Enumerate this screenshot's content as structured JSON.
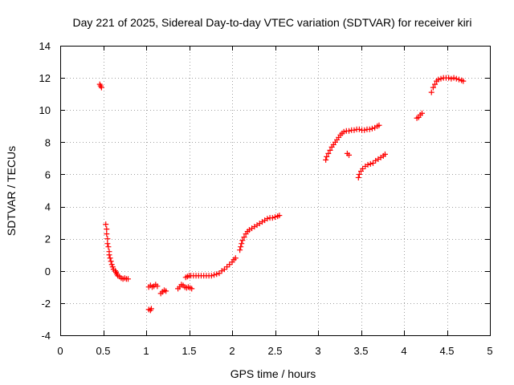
{
  "chart_data": {
    "type": "scatter",
    "title": "Day 221 of 2025, Sidereal Day-to-day VTEC variation (SDTVAR) for receiver kiri",
    "xlabel": "GPS time / hours",
    "ylabel": "SDTVAR / TECUs",
    "xlim": [
      0,
      5
    ],
    "ylim": [
      -4,
      14
    ],
    "xticks": [
      0,
      0.5,
      1,
      1.5,
      2,
      2.5,
      3,
      3.5,
      4,
      4.5,
      5
    ],
    "xtick_labels": [
      "0",
      "0.5",
      "1",
      "1.5",
      "2",
      "2.5",
      "3",
      "3.5",
      "4",
      "4.5",
      "5"
    ],
    "yticks": [
      -4,
      -2,
      0,
      2,
      4,
      6,
      8,
      10,
      12,
      14
    ],
    "ytick_labels": [
      "-4",
      "-2",
      "0",
      "2",
      "4",
      "6",
      "8",
      "10",
      "12",
      "14"
    ],
    "grid": true,
    "marker": "+",
    "marker_color": "#ff0000",
    "series": [
      {
        "name": "SDTVAR",
        "points": [
          [
            0.46,
            11.6
          ],
          [
            0.47,
            11.5
          ],
          [
            0.48,
            11.4
          ],
          [
            0.53,
            2.9
          ],
          [
            0.54,
            2.6
          ],
          [
            0.54,
            2.3
          ],
          [
            0.55,
            2.0
          ],
          [
            0.55,
            1.7
          ],
          [
            0.56,
            1.5
          ],
          [
            0.57,
            1.2
          ],
          [
            0.57,
            1.0
          ],
          [
            0.58,
            0.8
          ],
          [
            0.59,
            0.6
          ],
          [
            0.6,
            0.4
          ],
          [
            0.61,
            0.25
          ],
          [
            0.62,
            0.1
          ],
          [
            0.64,
            0.0
          ],
          [
            0.65,
            -0.1
          ],
          [
            0.66,
            -0.2
          ],
          [
            0.67,
            -0.3
          ],
          [
            0.69,
            -0.35
          ],
          [
            0.71,
            -0.45
          ],
          [
            0.73,
            -0.5
          ],
          [
            0.75,
            -0.45
          ],
          [
            0.77,
            -0.5
          ],
          [
            0.79,
            -0.5
          ],
          [
            1.03,
            -2.4
          ],
          [
            1.05,
            -2.45
          ],
          [
            1.06,
            -2.35
          ],
          [
            1.03,
            -1.0
          ],
          [
            1.05,
            -0.9
          ],
          [
            1.07,
            -1.0
          ],
          [
            1.09,
            -0.95
          ],
          [
            1.11,
            -0.85
          ],
          [
            1.13,
            -0.95
          ],
          [
            1.17,
            -1.4
          ],
          [
            1.19,
            -1.3
          ],
          [
            1.21,
            -1.2
          ],
          [
            1.23,
            -1.25
          ],
          [
            1.37,
            -1.1
          ],
          [
            1.39,
            -1.0
          ],
          [
            1.41,
            -0.85
          ],
          [
            1.43,
            -0.9
          ],
          [
            1.45,
            -1.0
          ],
          [
            1.47,
            -1.05
          ],
          [
            1.49,
            -1.0
          ],
          [
            1.51,
            -1.05
          ],
          [
            1.53,
            -1.1
          ],
          [
            1.46,
            -0.4
          ],
          [
            1.48,
            -0.35
          ],
          [
            1.5,
            -0.3
          ],
          [
            1.52,
            -0.3
          ],
          [
            1.55,
            -0.3
          ],
          [
            1.58,
            -0.3
          ],
          [
            1.61,
            -0.3
          ],
          [
            1.64,
            -0.3
          ],
          [
            1.67,
            -0.3
          ],
          [
            1.7,
            -0.3
          ],
          [
            1.73,
            -0.3
          ],
          [
            1.76,
            -0.3
          ],
          [
            1.79,
            -0.25
          ],
          [
            1.82,
            -0.2
          ],
          [
            1.85,
            -0.15
          ],
          [
            1.88,
            0.0
          ],
          [
            1.91,
            0.1
          ],
          [
            1.94,
            0.25
          ],
          [
            1.97,
            0.4
          ],
          [
            2.0,
            0.55
          ],
          [
            2.02,
            0.7
          ],
          [
            2.04,
            0.8
          ],
          [
            2.09,
            1.3
          ],
          [
            2.1,
            1.5
          ],
          [
            2.11,
            1.7
          ],
          [
            2.12,
            1.9
          ],
          [
            2.14,
            2.1
          ],
          [
            2.16,
            2.3
          ],
          [
            2.18,
            2.45
          ],
          [
            2.2,
            2.55
          ],
          [
            2.23,
            2.65
          ],
          [
            2.26,
            2.75
          ],
          [
            2.29,
            2.85
          ],
          [
            2.32,
            2.95
          ],
          [
            2.35,
            3.05
          ],
          [
            2.38,
            3.15
          ],
          [
            2.41,
            3.25
          ],
          [
            2.44,
            3.3
          ],
          [
            2.47,
            3.3
          ],
          [
            2.5,
            3.35
          ],
          [
            2.53,
            3.4
          ],
          [
            2.55,
            3.45
          ],
          [
            3.09,
            6.9
          ],
          [
            3.1,
            7.1
          ],
          [
            3.12,
            7.3
          ],
          [
            3.14,
            7.5
          ],
          [
            3.16,
            7.7
          ],
          [
            3.18,
            7.85
          ],
          [
            3.2,
            8.0
          ],
          [
            3.22,
            8.15
          ],
          [
            3.24,
            8.3
          ],
          [
            3.26,
            8.45
          ],
          [
            3.28,
            8.55
          ],
          [
            3.3,
            8.65
          ],
          [
            3.33,
            8.7
          ],
          [
            3.36,
            8.7
          ],
          [
            3.39,
            8.75
          ],
          [
            3.42,
            8.75
          ],
          [
            3.45,
            8.8
          ],
          [
            3.48,
            8.8
          ],
          [
            3.51,
            8.75
          ],
          [
            3.54,
            8.75
          ],
          [
            3.57,
            8.8
          ],
          [
            3.6,
            8.8
          ],
          [
            3.63,
            8.85
          ],
          [
            3.66,
            8.9
          ],
          [
            3.69,
            9.0
          ],
          [
            3.71,
            9.05
          ],
          [
            3.34,
            7.3
          ],
          [
            3.36,
            7.2
          ],
          [
            3.47,
            5.8
          ],
          [
            3.48,
            6.0
          ],
          [
            3.5,
            6.2
          ],
          [
            3.52,
            6.35
          ],
          [
            3.55,
            6.5
          ],
          [
            3.58,
            6.6
          ],
          [
            3.61,
            6.65
          ],
          [
            3.64,
            6.7
          ],
          [
            3.67,
            6.85
          ],
          [
            3.7,
            6.95
          ],
          [
            3.73,
            7.05
          ],
          [
            3.76,
            7.15
          ],
          [
            3.78,
            7.25
          ],
          [
            4.15,
            9.5
          ],
          [
            4.17,
            9.55
          ],
          [
            4.19,
            9.7
          ],
          [
            4.21,
            9.8
          ],
          [
            4.32,
            11.1
          ],
          [
            4.34,
            11.4
          ],
          [
            4.36,
            11.6
          ],
          [
            4.38,
            11.8
          ],
          [
            4.4,
            11.9
          ],
          [
            4.43,
            11.95
          ],
          [
            4.46,
            12.0
          ],
          [
            4.49,
            12.0
          ],
          [
            4.52,
            12.0
          ],
          [
            4.55,
            11.95
          ],
          [
            4.58,
            12.0
          ],
          [
            4.61,
            11.95
          ],
          [
            4.64,
            11.9
          ],
          [
            4.67,
            11.85
          ],
          [
            4.69,
            11.8
          ]
        ]
      }
    ]
  }
}
